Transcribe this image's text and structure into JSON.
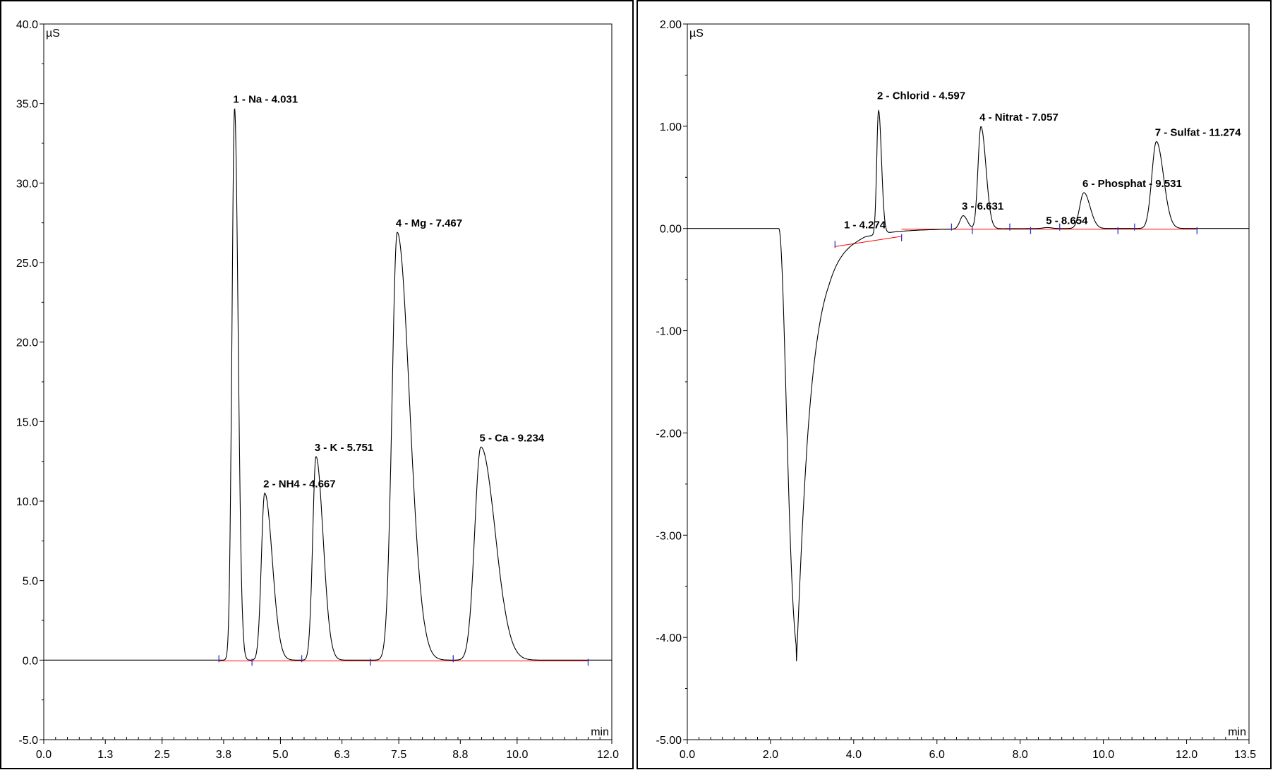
{
  "colors": {
    "trace": "#000000",
    "baseline": "#ff0000",
    "marker": "#3333cc",
    "frame": "#000000"
  },
  "chart_data": [
    {
      "type": "line",
      "title": "",
      "xlabel": "min",
      "ylabel": "µS",
      "xlim": [
        0.0,
        12.0
      ],
      "ylim": [
        -5.0,
        40.0
      ],
      "x_ticks": [
        "0.0",
        "1.3",
        "2.5",
        "3.8",
        "5.0",
        "6.3",
        "7.5",
        "8.8",
        "10.0",
        "12.0"
      ],
      "y_ticks": [
        "40.0",
        "35.0",
        "30.0",
        "25.0",
        "20.0",
        "15.0",
        "10.0",
        "5.0",
        "0.0",
        "-5.0"
      ],
      "baseline_value": 0.0,
      "peaks": [
        {
          "label": "1 - Na - 4.031",
          "rt": 4.031,
          "height": 34.7,
          "sigma_left": 0.055,
          "sigma_right": 0.075
        },
        {
          "label": "2 - NH4 - 4.667",
          "rt": 4.667,
          "height": 10.5,
          "sigma_left": 0.07,
          "sigma_right": 0.16
        },
        {
          "label": "3 - K - 5.751",
          "rt": 5.751,
          "height": 12.8,
          "sigma_left": 0.07,
          "sigma_right": 0.15
        },
        {
          "label": "4 - Mg - 7.467",
          "rt": 7.467,
          "height": 26.9,
          "sigma_left": 0.11,
          "sigma_right": 0.26
        },
        {
          "label": "5 - Ca - 9.234",
          "rt": 9.234,
          "height": 13.4,
          "sigma_left": 0.13,
          "sigma_right": 0.3
        }
      ],
      "integration_markers": [
        3.7,
        4.4,
        5.45,
        6.9,
        8.65,
        11.5
      ]
    },
    {
      "type": "line",
      "title": "",
      "xlabel": "min",
      "ylabel": "µS",
      "xlim": [
        0.0,
        13.5
      ],
      "ylim": [
        -5.0,
        2.0
      ],
      "x_ticks": [
        "0.0",
        "2.0",
        "4.0",
        "6.0",
        "8.0",
        "10.0",
        "12.0",
        "13.5"
      ],
      "y_ticks": [
        "2.00",
        "1.00",
        "0.00",
        "-1.00",
        "-2.00",
        "-3.00",
        "-4.00",
        "-5.00"
      ],
      "baseline_value": 0.0,
      "system_dip": {
        "rt": 2.62,
        "depth": -4.35
      },
      "peaks": [
        {
          "label": "1 - 4.274",
          "rt": 4.274,
          "height": 0.01,
          "sigma_left": 0.1,
          "sigma_right": 0.1
        },
        {
          "label": "2 - Chlorid - 4.597",
          "rt": 4.597,
          "height": 1.21,
          "sigma_left": 0.045,
          "sigma_right": 0.07
        },
        {
          "label": "3 - 6.631",
          "rt": 6.631,
          "height": 0.13,
          "sigma_left": 0.08,
          "sigma_right": 0.1
        },
        {
          "label": "4 - Nitrat - 7.057",
          "rt": 7.057,
          "height": 1.0,
          "sigma_left": 0.07,
          "sigma_right": 0.12
        },
        {
          "label": "5 - 8.654",
          "rt": 8.654,
          "height": 0.01,
          "sigma_left": 0.1,
          "sigma_right": 0.1
        },
        {
          "label": "6 - Phosphat - 9.531",
          "rt": 9.531,
          "height": 0.35,
          "sigma_left": 0.1,
          "sigma_right": 0.15
        },
        {
          "label": "7 - Sulfat - 11.274",
          "rt": 11.274,
          "height": 0.85,
          "sigma_left": 0.11,
          "sigma_right": 0.17
        }
      ],
      "integration_markers": [
        3.55,
        5.15,
        6.35,
        6.85,
        7.75,
        8.25,
        8.95,
        10.35,
        10.75,
        12.25
      ]
    }
  ]
}
